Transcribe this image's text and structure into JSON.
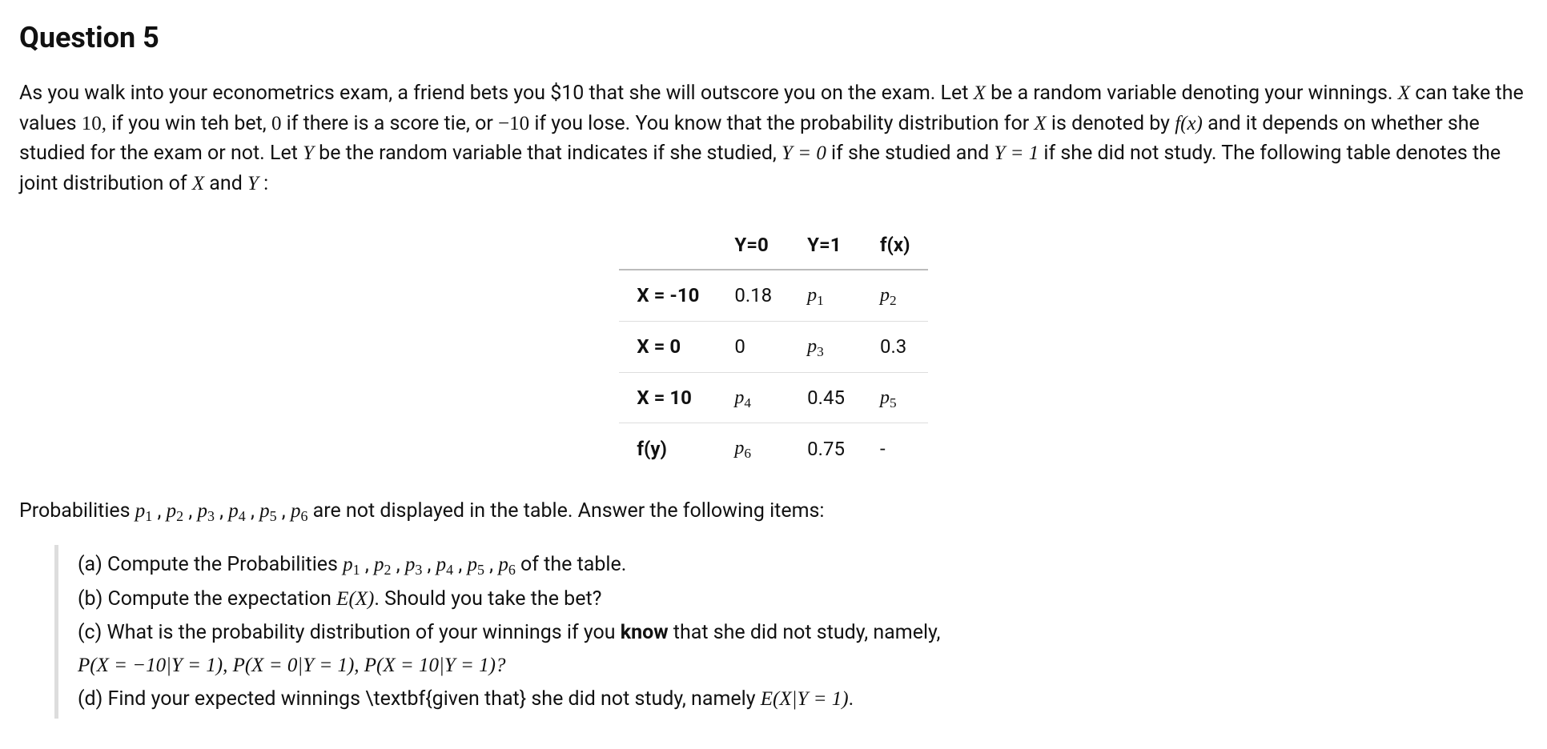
{
  "title": "Question 5",
  "intro": {
    "t1": "As you walk into your econometrics exam, a friend bets you $10 that she will outscore you on the exam. Let ",
    "X": "X",
    "t2": " be a random variable denoting your winnings. ",
    "t3": " can take the values ",
    "v10": "10,",
    "t4": " if you win teh bet, ",
    "v0": "0",
    "t5": " if there is a score tie, or ",
    "vn10": "−10",
    "t6": " if you lose. You know that the probability distribution for ",
    "t7": " is denoted by ",
    "fx": "f(x)",
    "t8": " and it depends on whether she studied for the exam or not. Let ",
    "Y": "Y",
    "t9": " be the random variable that indicates if she studied, ",
    "yeq0": "Y = 0",
    "t10": " if she studied and ",
    "yeq1": "Y = 1",
    "t11": " if she did not study. The following table denotes the joint distribution of ",
    "and": " and ",
    "colon": " :"
  },
  "table": {
    "h1": "Y=0",
    "h2": "Y=1",
    "h3": "f(x)",
    "r1c0": "X = -10",
    "r1c1": "0.18",
    "r1c2p": "p",
    "r1c2s": "1",
    "r1c3p": "p",
    "r1c3s": "2",
    "r2c0": "X = 0",
    "r2c1": "0",
    "r2c2p": "p",
    "r2c2s": "3",
    "r2c3": "0.3",
    "r3c0": "X = 10",
    "r3c1p": "p",
    "r3c1s": "4",
    "r3c2": "0.45",
    "r3c3p": "p",
    "r3c3s": "5",
    "r4c0": "f(y)",
    "r4c1p": "p",
    "r4c1s": "6",
    "r4c2": "0.75",
    "r4c3": "-"
  },
  "after": {
    "t1": "Probabilities ",
    "p": "p",
    "s1": "1",
    "s2": "2",
    "s3": "3",
    "s4": "4",
    "s5": "5",
    "s6": "6",
    "comma": " , ",
    "t2": "  are not displayed in the table. Answer the following items:"
  },
  "items": {
    "a1": "(a) Compute the Probabilities ",
    "a2": "  of the table.",
    "b1": "(b) Compute the expectation ",
    "EX": "E(X)",
    "b2": ". Should you take the bet?",
    "c1": "(c) What is the probability distribution of your winnings if you ",
    "know": "know",
    "c2": " that she did not study, namely,",
    "cEq": "P(X = −10|Y = 1), P(X = 0|Y = 1), P(X = 10|Y = 1)?",
    "d1": "(d) Find your expected winnings \\textbf{given that} she did not study, namely ",
    "dEq": "E(X|Y = 1)",
    "dot": "."
  }
}
